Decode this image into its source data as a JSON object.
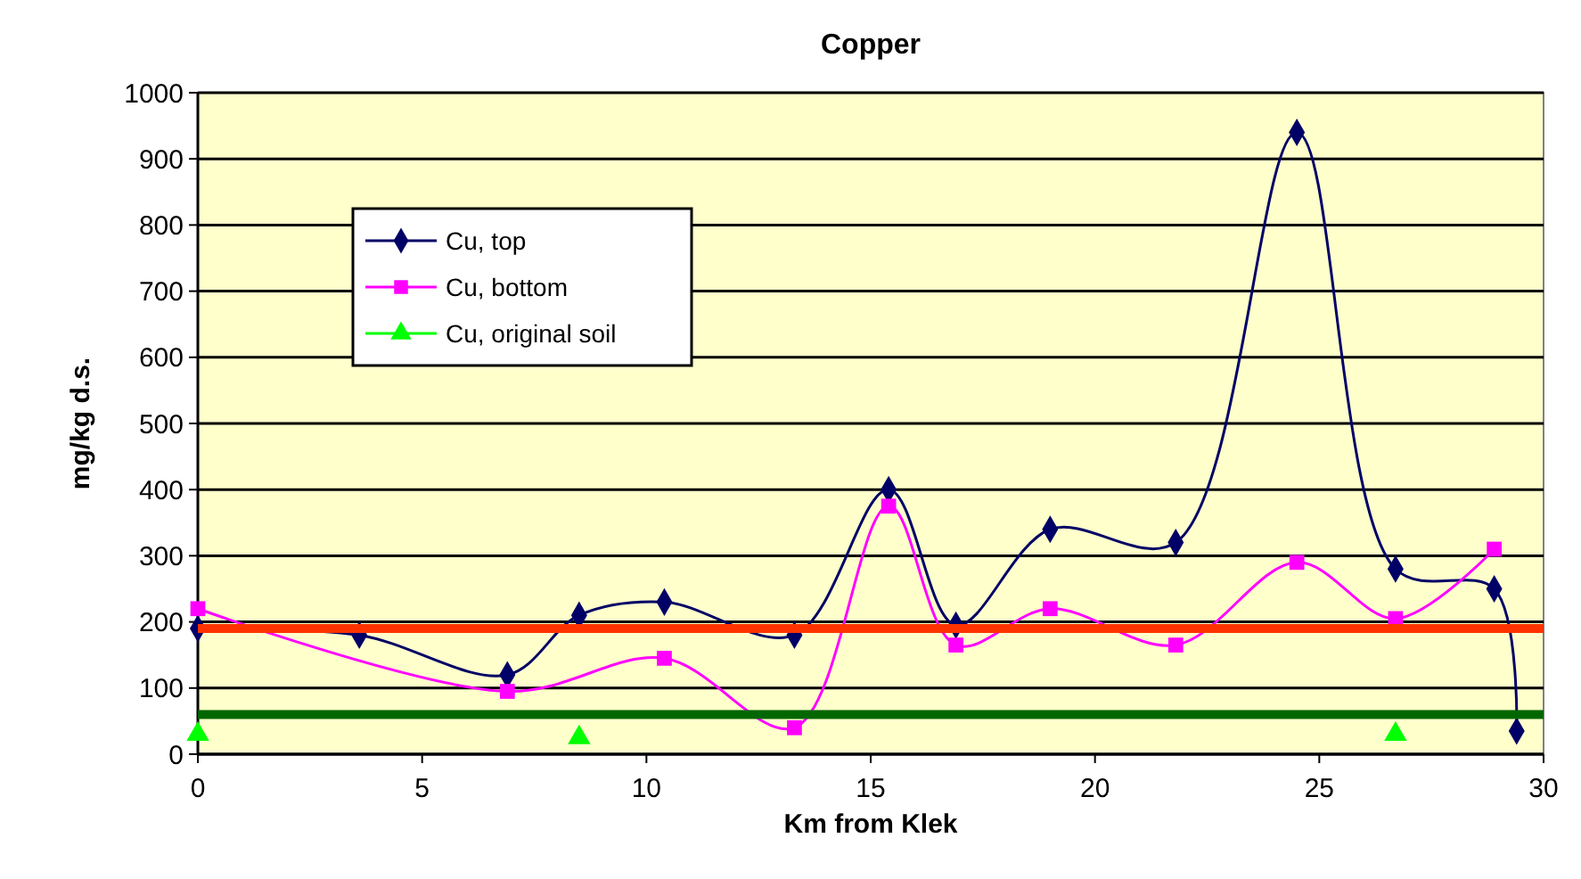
{
  "chart_data": {
    "type": "line",
    "title": "Copper",
    "xlabel": "Km from Klek",
    "ylabel": "mg/kg d.s.",
    "xlim": [
      0,
      30
    ],
    "xticks": [
      0,
      5,
      10,
      15,
      20,
      25,
      30
    ],
    "ylim": [
      0,
      1000
    ],
    "yticks": [
      0,
      100,
      200,
      300,
      400,
      500,
      600,
      700,
      800,
      900,
      1000
    ],
    "grid": "y",
    "legend": "top left",
    "series": [
      {
        "name": "Cu, top",
        "color": "#000066",
        "marker": "diamond",
        "x": [
          0,
          3.6,
          6.9,
          8.5,
          10.4,
          13.3,
          15.4,
          16.9,
          19,
          21.8,
          24.5,
          26.7,
          28.9,
          29.4
        ],
        "values": [
          190,
          180,
          120,
          210,
          230,
          180,
          400,
          195,
          340,
          320,
          940,
          280,
          250,
          35
        ]
      },
      {
        "name": "Cu, bottom",
        "color": "#ff00ff",
        "marker": "square",
        "x": [
          0,
          6.9,
          10.4,
          13.3,
          15.4,
          16.9,
          19,
          21.8,
          24.5,
          26.7,
          28.9
        ],
        "values": [
          220,
          95,
          145,
          40,
          375,
          165,
          220,
          165,
          290,
          205,
          310
        ]
      },
      {
        "name": "Cu, original soil",
        "color": "#00ff00",
        "marker": "triangle",
        "type": "scatter",
        "x": [
          0,
          8.5,
          26.7
        ],
        "values": [
          30,
          25,
          30
        ]
      }
    ],
    "ref_lines": [
      {
        "axis": "y",
        "value": 190,
        "color": "#ff3300"
      },
      {
        "axis": "y",
        "value": 60,
        "color": "#006600"
      }
    ]
  }
}
